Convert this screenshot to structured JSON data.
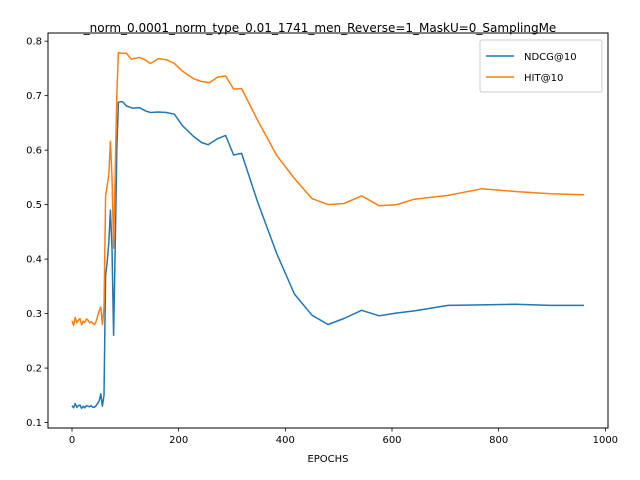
{
  "chart_data": {
    "type": "line",
    "title": "_norm_0.0001_norm_type_0.01_1741_men_Reverse=1_MaskU=0_SamplingMe",
    "xlabel": "EPOCHS",
    "ylabel": "",
    "xlim": [
      -45,
      1005
    ],
    "ylim": [
      0.09,
      0.815
    ],
    "xticks": [
      0,
      200,
      400,
      600,
      800,
      1000
    ],
    "yticks": [
      0.1,
      0.2,
      0.3,
      0.4,
      0.5,
      0.6,
      0.7,
      0.8
    ],
    "grid": false,
    "legend_position": "top-right",
    "series": [
      {
        "name": "NDCG@10",
        "color": "#1f77b4",
        "points": [
          [
            0,
            0.131
          ],
          [
            3,
            0.127
          ],
          [
            6,
            0.135
          ],
          [
            9,
            0.128
          ],
          [
            12,
            0.131
          ],
          [
            15,
            0.132
          ],
          [
            18,
            0.126
          ],
          [
            21,
            0.13
          ],
          [
            24,
            0.127
          ],
          [
            27,
            0.131
          ],
          [
            30,
            0.13
          ],
          [
            33,
            0.129
          ],
          [
            36,
            0.131
          ],
          [
            39,
            0.128
          ],
          [
            42,
            0.128
          ],
          [
            45,
            0.131
          ],
          [
            48,
            0.135
          ],
          [
            51,
            0.14
          ],
          [
            54,
            0.153
          ],
          [
            57,
            0.13
          ],
          [
            60,
            0.15
          ],
          [
            63,
            0.37
          ],
          [
            66,
            0.395
          ],
          [
            69,
            0.43
          ],
          [
            72,
            0.49
          ],
          [
            75,
            0.42
          ],
          [
            78,
            0.26
          ],
          [
            81,
            0.42
          ],
          [
            84,
            0.6
          ],
          [
            87,
            0.688
          ],
          [
            93,
            0.689
          ],
          [
            96,
            0.688
          ],
          [
            102,
            0.681
          ],
          [
            114,
            0.677
          ],
          [
            126,
            0.678
          ],
          [
            138,
            0.672
          ],
          [
            147,
            0.669
          ],
          [
            162,
            0.67
          ],
          [
            177,
            0.669
          ],
          [
            192,
            0.666
          ],
          [
            207,
            0.645
          ],
          [
            228,
            0.625
          ],
          [
            243,
            0.614
          ],
          [
            255,
            0.61
          ],
          [
            273,
            0.621
          ],
          [
            288,
            0.627
          ],
          [
            303,
            0.591
          ],
          [
            318,
            0.594
          ],
          [
            348,
            0.505
          ],
          [
            384,
            0.41
          ],
          [
            417,
            0.336
          ],
          [
            450,
            0.297
          ],
          [
            480,
            0.28
          ],
          [
            510,
            0.291
          ],
          [
            543,
            0.306
          ],
          [
            576,
            0.296
          ],
          [
            609,
            0.301
          ],
          [
            642,
            0.305
          ],
          [
            705,
            0.315
          ],
          [
            768,
            0.316
          ],
          [
            831,
            0.317
          ],
          [
            897,
            0.315
          ],
          [
            960,
            0.315
          ]
        ]
      },
      {
        "name": "HIT@10",
        "color": "#ff7f0e",
        "points": [
          [
            0,
            0.287
          ],
          [
            3,
            0.278
          ],
          [
            6,
            0.293
          ],
          [
            9,
            0.283
          ],
          [
            12,
            0.288
          ],
          [
            15,
            0.291
          ],
          [
            18,
            0.279
          ],
          [
            21,
            0.286
          ],
          [
            24,
            0.284
          ],
          [
            27,
            0.29
          ],
          [
            30,
            0.288
          ],
          [
            33,
            0.283
          ],
          [
            36,
            0.285
          ],
          [
            39,
            0.282
          ],
          [
            42,
            0.28
          ],
          [
            45,
            0.285
          ],
          [
            48,
            0.295
          ],
          [
            51,
            0.305
          ],
          [
            54,
            0.312
          ],
          [
            57,
            0.28
          ],
          [
            60,
            0.31
          ],
          [
            63,
            0.515
          ],
          [
            66,
            0.535
          ],
          [
            69,
            0.555
          ],
          [
            72,
            0.616
          ],
          [
            75,
            0.55
          ],
          [
            78,
            0.42
          ],
          [
            81,
            0.56
          ],
          [
            84,
            0.7
          ],
          [
            87,
            0.779
          ],
          [
            93,
            0.778
          ],
          [
            102,
            0.778
          ],
          [
            111,
            0.767
          ],
          [
            126,
            0.77
          ],
          [
            135,
            0.767
          ],
          [
            147,
            0.759
          ],
          [
            162,
            0.768
          ],
          [
            177,
            0.766
          ],
          [
            192,
            0.759
          ],
          [
            207,
            0.745
          ],
          [
            228,
            0.731
          ],
          [
            243,
            0.726
          ],
          [
            258,
            0.724
          ],
          [
            273,
            0.734
          ],
          [
            288,
            0.736
          ],
          [
            303,
            0.712
          ],
          [
            318,
            0.713
          ],
          [
            348,
            0.655
          ],
          [
            384,
            0.59
          ],
          [
            417,
            0.548
          ],
          [
            450,
            0.511
          ],
          [
            480,
            0.5
          ],
          [
            510,
            0.502
          ],
          [
            543,
            0.516
          ],
          [
            576,
            0.498
          ],
          [
            609,
            0.5
          ],
          [
            642,
            0.51
          ],
          [
            705,
            0.517
          ],
          [
            768,
            0.529
          ],
          [
            831,
            0.524
          ],
          [
            897,
            0.52
          ],
          [
            960,
            0.518
          ]
        ]
      }
    ]
  }
}
